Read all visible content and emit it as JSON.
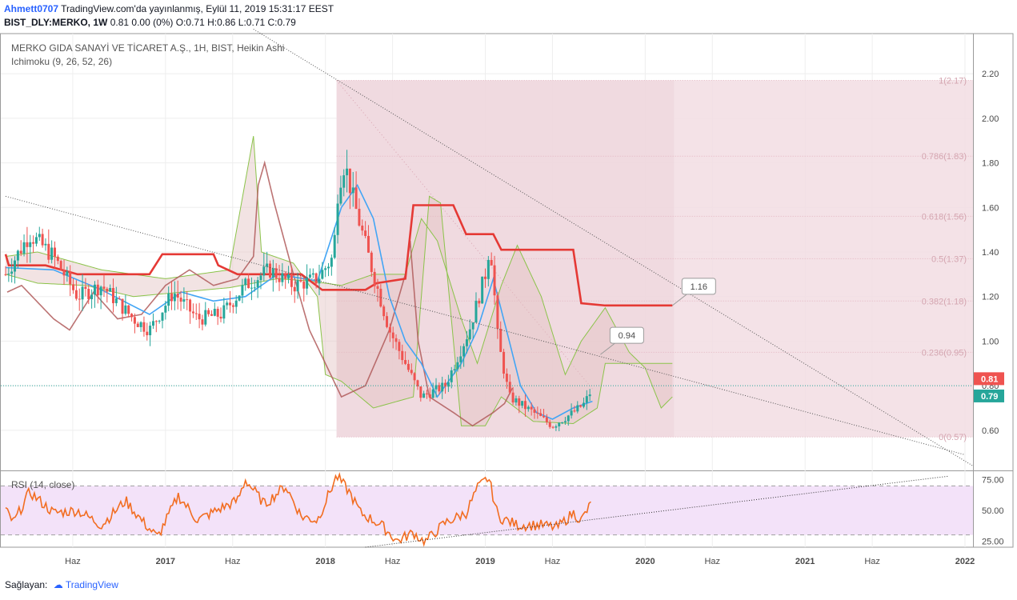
{
  "header": {
    "user": "Ahmett0707",
    "published": "TradingView.com'da yayınlanmış, Eylül 11, 2019 15:31:17 EEST",
    "symbol": "BIST_DLY:MERKO, 1W",
    "ohlc": "0.81 0.00 (0%) O:0.71 H:0.86 L:0.71 C:0.79"
  },
  "chart_data": {
    "type": "candlestick",
    "title": "MERKO GIDA SANAYİ VE TİCARET A.Ş., 1H, BIST, Heikin Ashi",
    "indicator": "Ichimoku (9, 26, 52, 26)",
    "price_axis": {
      "ticks": [
        "2.20",
        "2.00",
        "1.80",
        "1.60",
        "1.40",
        "1.20",
        "1.00",
        "0.80",
        "0.60"
      ],
      "range": [
        0.42,
        2.38
      ]
    },
    "price_badges": [
      {
        "label": "0.81",
        "value": 0.81,
        "color": "#ef5350"
      },
      {
        "label": "0.79",
        "value": 0.79,
        "color": "#26a69a"
      }
    ],
    "x_axis": {
      "labels": [
        {
          "text": "Haz",
          "t": 2016.42,
          "bold": false
        },
        {
          "text": "2017",
          "t": 2017.0,
          "bold": true
        },
        {
          "text": "Haz",
          "t": 2017.42,
          "bold": false
        },
        {
          "text": "2018",
          "t": 2018.0,
          "bold": true
        },
        {
          "text": "Haz",
          "t": 2018.42,
          "bold": false
        },
        {
          "text": "2019",
          "t": 2019.0,
          "bold": true
        },
        {
          "text": "Haz",
          "t": 2019.42,
          "bold": false
        },
        {
          "text": "2020",
          "t": 2020.0,
          "bold": true
        },
        {
          "text": "Haz",
          "t": 2020.42,
          "bold": false
        },
        {
          "text": "2021",
          "t": 2021.0,
          "bold": true
        },
        {
          "text": "Haz",
          "t": 2021.42,
          "bold": false
        },
        {
          "text": "2022",
          "t": 2022.0,
          "bold": true
        }
      ],
      "range": [
        2016.0,
        2022.05
      ]
    },
    "fibonacci": {
      "t_start": 2018.07,
      "t_end": 2020.18,
      "levels": [
        {
          "label": "1(2.17)",
          "value": 2.17
        },
        {
          "label": "0.786(1.83)",
          "value": 1.83
        },
        {
          "label": "0.618(1.56)",
          "value": 1.56
        },
        {
          "label": "0.5(1.37)",
          "value": 1.37
        },
        {
          "label": "0.382(1.18)",
          "value": 1.18
        },
        {
          "label": "0.236(0.95)",
          "value": 0.95
        },
        {
          "label": "0(0.57)",
          "value": 0.57
        }
      ]
    },
    "trendlines": [
      {
        "t1": 2016.0,
        "v1": 1.65,
        "t2": 2022.0,
        "v2": 0.49
      },
      {
        "t1": 2017.55,
        "v1": 2.4,
        "t2": 2022.05,
        "v2": 0.44
      }
    ],
    "callouts": [
      {
        "label": "0.94",
        "t": 2019.72,
        "v": 0.94
      },
      {
        "label": "1.16",
        "t": 2020.17,
        "v": 1.16
      }
    ],
    "price_keypoints": [
      [
        2016.0,
        1.3
      ],
      [
        2016.15,
        1.48
      ],
      [
        2016.3,
        1.38
      ],
      [
        2016.45,
        1.2
      ],
      [
        2016.6,
        1.25
      ],
      [
        2016.8,
        1.1
      ],
      [
        2016.9,
        1.05
      ],
      [
        2017.05,
        1.22
      ],
      [
        2017.2,
        1.1
      ],
      [
        2017.35,
        1.12
      ],
      [
        2017.5,
        1.25
      ],
      [
        2017.65,
        1.32
      ],
      [
        2017.8,
        1.25
      ],
      [
        2017.95,
        1.28
      ],
      [
        2018.05,
        1.38
      ],
      [
        2018.08,
        1.7
      ],
      [
        2018.12,
        1.8
      ],
      [
        2018.18,
        1.62
      ],
      [
        2018.3,
        1.3
      ],
      [
        2018.4,
        1.05
      ],
      [
        2018.5,
        0.9
      ],
      [
        2018.6,
        0.75
      ],
      [
        2018.75,
        0.8
      ],
      [
        2018.9,
        1.05
      ],
      [
        2019.0,
        1.3
      ],
      [
        2019.03,
        1.45
      ],
      [
        2019.08,
        1.0
      ],
      [
        2019.15,
        0.75
      ],
      [
        2019.3,
        0.68
      ],
      [
        2019.42,
        0.62
      ],
      [
        2019.55,
        0.68
      ],
      [
        2019.62,
        0.72
      ],
      [
        2019.67,
        0.79
      ]
    ],
    "ichimoku": {
      "conversion_color": "#42a5f5",
      "base_color": "#e53935",
      "lagging_color": "#b05a5a",
      "span_color": "#8bc34a",
      "base_line": [
        [
          2016.0,
          1.39
        ],
        [
          2016.02,
          1.34
        ],
        [
          2016.25,
          1.34
        ],
        [
          2016.45,
          1.3
        ],
        [
          2016.9,
          1.3
        ],
        [
          2016.98,
          1.39
        ],
        [
          2017.3,
          1.39
        ],
        [
          2017.33,
          1.34
        ],
        [
          2017.45,
          1.3
        ],
        [
          2017.75,
          1.3
        ],
        [
          2017.85,
          1.3
        ],
        [
          2017.98,
          1.23
        ],
        [
          2018.25,
          1.23
        ],
        [
          2018.32,
          1.26
        ],
        [
          2018.5,
          1.28
        ],
        [
          2018.55,
          1.61
        ],
        [
          2018.8,
          1.61
        ],
        [
          2018.88,
          1.48
        ],
        [
          2019.05,
          1.48
        ],
        [
          2019.1,
          1.41
        ],
        [
          2019.55,
          1.41
        ],
        [
          2019.6,
          1.17
        ],
        [
          2019.75,
          1.16
        ],
        [
          2020.17,
          1.16
        ]
      ],
      "conversion_line": [
        [
          2016.0,
          1.33
        ],
        [
          2016.3,
          1.32
        ],
        [
          2016.6,
          1.23
        ],
        [
          2016.9,
          1.12
        ],
        [
          2017.1,
          1.22
        ],
        [
          2017.3,
          1.18
        ],
        [
          2017.5,
          1.2
        ],
        [
          2017.7,
          1.3
        ],
        [
          2017.95,
          1.27
        ],
        [
          2018.1,
          1.6
        ],
        [
          2018.2,
          1.7
        ],
        [
          2018.3,
          1.55
        ],
        [
          2018.4,
          1.2
        ],
        [
          2018.5,
          1.0
        ],
        [
          2018.6,
          0.9
        ],
        [
          2018.7,
          0.75
        ],
        [
          2018.85,
          0.9
        ],
        [
          2018.95,
          1.05
        ],
        [
          2019.05,
          1.28
        ],
        [
          2019.15,
          1.0
        ],
        [
          2019.22,
          0.8
        ],
        [
          2019.32,
          0.68
        ],
        [
          2019.42,
          0.65
        ],
        [
          2019.55,
          0.7
        ],
        [
          2019.67,
          0.73
        ]
      ],
      "span_a": [
        [
          2016.0,
          1.3
        ],
        [
          2016.2,
          1.26
        ],
        [
          2016.5,
          1.25
        ],
        [
          2016.8,
          1.2
        ],
        [
          2017.1,
          1.22
        ],
        [
          2017.4,
          1.24
        ],
        [
          2017.7,
          1.28
        ],
        [
          2017.9,
          1.27
        ],
        [
          2018.1,
          1.25
        ],
        [
          2018.3,
          1.3
        ],
        [
          2018.5,
          1.3
        ],
        [
          2018.6,
          1.55
        ],
        [
          2018.7,
          1.45
        ],
        [
          2018.85,
          1.1
        ],
        [
          2018.95,
          0.9
        ],
        [
          2019.1,
          1.25
        ],
        [
          2019.2,
          1.43
        ],
        [
          2019.35,
          1.2
        ],
        [
          2019.5,
          0.85
        ],
        [
          2019.6,
          1.0
        ],
        [
          2019.75,
          1.15
        ],
        [
          2019.9,
          0.95
        ],
        [
          2020.0,
          0.88
        ],
        [
          2020.1,
          0.7
        ],
        [
          2020.17,
          0.75
        ]
      ],
      "span_b": [
        [
          2016.0,
          1.38
        ],
        [
          2016.2,
          1.4
        ],
        [
          2016.4,
          1.36
        ],
        [
          2016.6,
          1.32
        ],
        [
          2016.8,
          1.3
        ],
        [
          2017.0,
          1.28
        ],
        [
          2017.2,
          1.3
        ],
        [
          2017.4,
          1.32
        ],
        [
          2017.55,
          1.92
        ],
        [
          2017.6,
          1.4
        ],
        [
          2017.8,
          1.35
        ],
        [
          2017.95,
          1.2
        ],
        [
          2018.0,
          0.85
        ],
        [
          2018.1,
          0.82
        ],
        [
          2018.3,
          0.7
        ],
        [
          2018.55,
          0.75
        ],
        [
          2018.65,
          1.65
        ],
        [
          2018.72,
          1.62
        ],
        [
          2018.85,
          0.62
        ],
        [
          2019.0,
          0.62
        ],
        [
          2019.1,
          0.75
        ],
        [
          2019.3,
          0.64
        ],
        [
          2019.55,
          0.63
        ],
        [
          2019.7,
          0.7
        ],
        [
          2019.75,
          0.9
        ]
      ]
    },
    "rsi": {
      "label": "RSI (14, close)",
      "ticks": [
        "75.00",
        "50.00",
        "25.00"
      ],
      "upper": 70,
      "lower": 30,
      "range": [
        20,
        82
      ],
      "line_color": "#f26d21",
      "band_color": "#f3e2f9",
      "trendline": {
        "t1": 2018.25,
        "v1": 20,
        "t2": 2021.9,
        "v2": 78
      },
      "keypoints": [
        [
          2016.0,
          50
        ],
        [
          2016.05,
          40
        ],
        [
          2016.15,
          65
        ],
        [
          2016.3,
          48
        ],
        [
          2016.45,
          50
        ],
        [
          2016.6,
          38
        ],
        [
          2016.75,
          58
        ],
        [
          2016.85,
          42
        ],
        [
          2016.95,
          28
        ],
        [
          2017.08,
          62
        ],
        [
          2017.2,
          42
        ],
        [
          2017.35,
          52
        ],
        [
          2017.45,
          58
        ],
        [
          2017.5,
          75
        ],
        [
          2017.62,
          55
        ],
        [
          2017.75,
          70
        ],
        [
          2017.85,
          45
        ],
        [
          2017.95,
          42
        ],
        [
          2018.07,
          78
        ],
        [
          2018.15,
          65
        ],
        [
          2018.22,
          48
        ],
        [
          2018.35,
          38
        ],
        [
          2018.45,
          25
        ],
        [
          2018.55,
          32
        ],
        [
          2018.62,
          24
        ],
        [
          2018.75,
          40
        ],
        [
          2018.88,
          48
        ],
        [
          2018.95,
          68
        ],
        [
          2019.02,
          77
        ],
        [
          2019.08,
          45
        ],
        [
          2019.2,
          38
        ],
        [
          2019.35,
          38
        ],
        [
          2019.45,
          36
        ],
        [
          2019.55,
          48
        ],
        [
          2019.6,
          42
        ],
        [
          2019.67,
          57
        ]
      ]
    },
    "legend_placement": "top-left"
  },
  "footer": {
    "provider": "Sağlayan:",
    "brand": "TradingView"
  }
}
